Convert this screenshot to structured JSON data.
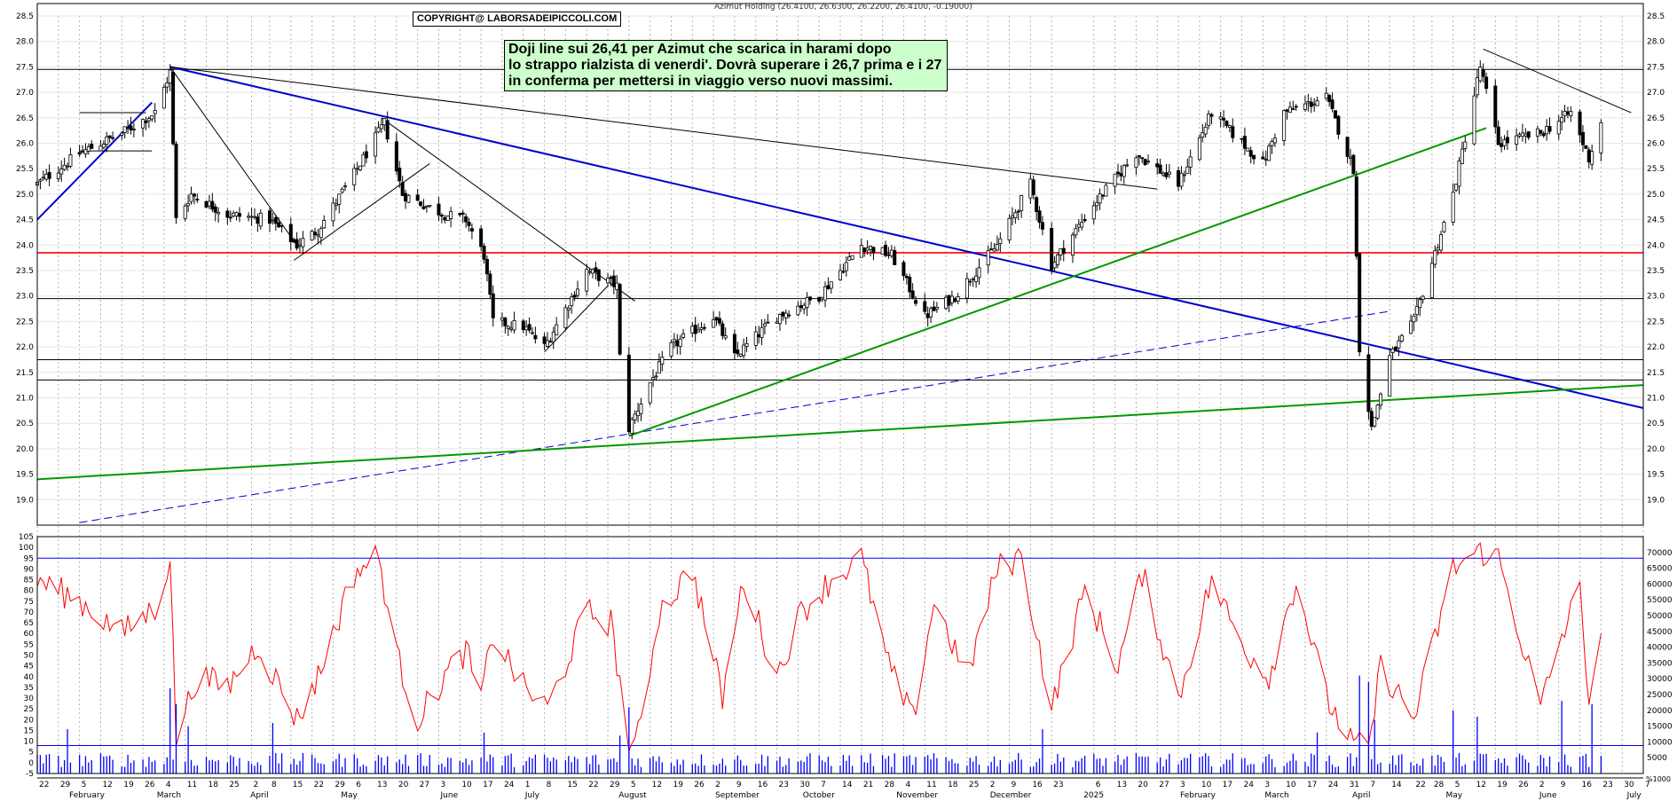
{
  "header": {
    "copyright": "COPYRIGHT@ LABORSADEIPICCOLI.COM",
    "title": "Azimut Holding (26.4100, 26.6300, 26.2200, 26.4100, -0.19000)"
  },
  "annotation": {
    "line1": "Doji line sui 26,41 per Azimut che scarica in harami dopo",
    "line2": "lo strappo rialzista di venerdi'. Dovrà superare i 26,7 prima e i 27",
    "line3": "in conferma per mettersi in viaggio verso nuovi massimi."
  },
  "colors": {
    "candle": "#000000",
    "trend_blue": "#0000cc",
    "trend_green": "#009900",
    "support_red": "#ff0000",
    "oscillator": "#ff0000",
    "volume": "#0000ff",
    "grid": "#b0b0b0",
    "annotation_bg": "#ccffcc"
  },
  "chart_data": [
    {
      "type": "candlestick",
      "title": "Azimut Holding (26.4100, 26.6300, 26.2200, 26.4100, -0.19000)",
      "ylim": [
        18.5,
        28.5
      ],
      "y_ticks": [
        "28.5",
        "28.0",
        "27.5",
        "27.0",
        "26.5",
        "26.0",
        "25.5",
        "25.0",
        "24.5",
        "24.0",
        "23.5",
        "23.0",
        "22.5",
        "22.0",
        "21.5",
        "21.0",
        "20.5",
        "20.0",
        "19.5",
        "19.0"
      ],
      "last_close": 26.41,
      "horizontal_levels": [
        {
          "value": 27.45,
          "color": "black"
        },
        {
          "value": 23.85,
          "color": "red"
        },
        {
          "value": 22.95,
          "color": "black"
        },
        {
          "value": 21.75,
          "color": "black"
        },
        {
          "value": 21.35,
          "color": "black"
        }
      ],
      "anchors": [
        [
          "2024-01-22",
          25.2
        ],
        [
          "2024-02-05",
          25.8
        ],
        [
          "2024-02-19",
          26.2
        ],
        [
          "2024-03-01",
          26.6
        ],
        [
          "2024-03-06",
          27.4
        ],
        [
          "2024-03-08",
          24.5
        ],
        [
          "2024-03-13",
          25.0
        ],
        [
          "2024-03-25",
          24.6
        ],
        [
          "2024-04-08",
          24.5
        ],
        [
          "2024-04-17",
          24.0
        ],
        [
          "2024-04-24",
          24.3
        ],
        [
          "2024-05-06",
          25.4
        ],
        [
          "2024-05-16",
          26.4
        ],
        [
          "2024-05-22",
          25.0
        ],
        [
          "2024-06-05",
          24.6
        ],
        [
          "2024-06-12",
          24.5
        ],
        [
          "2024-06-18",
          23.8
        ],
        [
          "2024-06-21",
          22.5
        ],
        [
          "2024-07-01",
          22.4
        ],
        [
          "2024-07-08",
          22.0
        ],
        [
          "2024-07-22",
          23.5
        ],
        [
          "2024-08-01",
          23.2
        ],
        [
          "2024-08-02",
          21.8
        ],
        [
          "2024-08-05",
          20.4
        ],
        [
          "2024-08-12",
          21.3
        ],
        [
          "2024-08-19",
          22.0
        ],
        [
          "2024-09-02",
          22.6
        ],
        [
          "2024-09-09",
          21.8
        ],
        [
          "2024-09-23",
          22.6
        ],
        [
          "2024-10-07",
          23.0
        ],
        [
          "2024-10-21",
          24.0
        ],
        [
          "2024-10-31",
          23.8
        ],
        [
          "2024-11-11",
          22.6
        ],
        [
          "2024-11-21",
          23.0
        ],
        [
          "2024-12-05",
          24.0
        ],
        [
          "2024-12-16",
          25.2
        ],
        [
          "2024-12-23",
          23.6
        ],
        [
          "2025-01-06",
          24.8
        ],
        [
          "2025-01-20",
          25.8
        ],
        [
          "2025-02-03",
          25.2
        ],
        [
          "2025-02-14",
          26.6
        ],
        [
          "2025-03-03",
          25.6
        ],
        [
          "2025-03-10",
          26.6
        ],
        [
          "2025-03-24",
          26.9
        ],
        [
          "2025-04-02",
          25.5
        ],
        [
          "2025-04-04",
          22.0
        ],
        [
          "2025-04-08",
          20.4
        ],
        [
          "2025-04-14",
          21.8
        ],
        [
          "2025-04-22",
          22.5
        ],
        [
          "2025-05-05",
          25.0
        ],
        [
          "2025-05-14",
          27.5
        ],
        [
          "2025-05-20",
          26.0
        ],
        [
          "2025-06-03",
          26.2
        ],
        [
          "2025-06-13",
          26.6
        ],
        [
          "2025-06-19",
          25.7
        ],
        [
          "2025-06-23",
          26.41
        ]
      ],
      "trendlines": [
        {
          "color": "blue",
          "start": [
            "2024-01-22",
            24.5
          ],
          "end": [
            "2024-02-29",
            26.8
          ]
        },
        {
          "color": "blue",
          "start": [
            "2024-03-06",
            27.5
          ],
          "end": [
            "2025-07-07",
            20.8
          ]
        },
        {
          "color": "blue",
          "style": "dashed",
          "start": [
            "2024-02-05",
            18.55
          ],
          "end": [
            "2025-04-14",
            22.7
          ]
        },
        {
          "color": "green",
          "start": [
            "2024-01-22",
            19.4
          ],
          "end": [
            "2025-07-07",
            21.25
          ]
        },
        {
          "color": "green",
          "start": [
            "2024-08-05",
            20.25
          ],
          "end": [
            "2025-05-16",
            26.3
          ]
        },
        {
          "color": "black",
          "start": [
            "2024-03-06",
            27.5
          ],
          "end": [
            "2025-01-27",
            25.1
          ]
        },
        {
          "color": "black",
          "start": [
            "2024-03-06",
            27.5
          ],
          "end": [
            "2024-04-17",
            24.0
          ]
        },
        {
          "color": "black",
          "start": [
            "2024-05-15",
            26.5
          ],
          "end": [
            "2024-08-07",
            22.9
          ]
        },
        {
          "color": "black",
          "start": [
            "2024-04-16",
            23.7
          ],
          "end": [
            "2024-05-31",
            25.6
          ]
        },
        {
          "color": "black",
          "start": [
            "2024-07-08",
            21.9
          ],
          "end": [
            "2024-07-29",
            23.2
          ]
        },
        {
          "color": "black",
          "start": [
            "2024-02-05",
            26.6
          ],
          "end": [
            "2024-02-27",
            26.6
          ]
        },
        {
          "color": "black",
          "start": [
            "2024-02-05",
            25.85
          ],
          "end": [
            "2024-02-29",
            25.85
          ]
        },
        {
          "color": "black",
          "start": [
            "2025-05-15",
            27.85
          ],
          "end": [
            "2025-07-03",
            26.6
          ]
        }
      ]
    },
    {
      "type": "line",
      "name": "oscillator",
      "ylim": [
        -5,
        105
      ],
      "y_ticks": [
        "105",
        "100",
        "95",
        "90",
        "85",
        "80",
        "75",
        "70",
        "65",
        "60",
        "55",
        "50",
        "45",
        "40",
        "35",
        "30",
        "25",
        "20",
        "15",
        "10",
        "5",
        "0",
        "-5"
      ],
      "levels": [
        95,
        8
      ],
      "x": [
        "2024-01-22",
        "2024-02-05",
        "2024-02-19",
        "2024-03-01",
        "2024-03-06",
        "2024-03-08",
        "2024-03-15",
        "2024-03-25",
        "2024-04-04",
        "2024-04-17",
        "2024-04-24",
        "2024-05-06",
        "2024-05-14",
        "2024-05-20",
        "2024-05-27",
        "2024-06-05",
        "2024-06-12",
        "2024-06-17",
        "2024-06-21",
        "2024-07-01",
        "2024-07-09",
        "2024-07-22",
        "2024-07-30",
        "2024-08-05",
        "2024-08-07",
        "2024-08-15",
        "2024-08-26",
        "2024-09-05",
        "2024-09-12",
        "2024-09-23",
        "2024-10-01",
        "2024-10-11",
        "2024-10-21",
        "2024-10-30",
        "2024-11-07",
        "2024-11-14",
        "2024-11-25",
        "2024-12-05",
        "2024-12-13",
        "2024-12-23",
        "2025-01-03",
        "2025-01-14",
        "2025-01-22",
        "2025-02-03",
        "2025-02-14",
        "2025-02-24",
        "2025-03-05",
        "2025-03-14",
        "2025-03-24",
        "2025-04-01",
        "2025-04-07",
        "2025-04-11",
        "2025-04-22",
        "2025-05-05",
        "2025-05-12",
        "2025-05-16",
        "2025-05-20",
        "2025-06-03",
        "2025-06-09",
        "2025-06-16",
        "2025-06-19",
        "2025-06-23"
      ],
      "values": [
        85,
        75,
        60,
        72,
        95,
        12,
        40,
        35,
        55,
        20,
        40,
        88,
        96,
        50,
        20,
        40,
        52,
        30,
        60,
        35,
        25,
        70,
        65,
        10,
        5,
        70,
        90,
        30,
        85,
        40,
        70,
        85,
        95,
        45,
        20,
        75,
        40,
        90,
        96,
        25,
        80,
        45,
        88,
        30,
        85,
        55,
        40,
        85,
        30,
        10,
        5,
        45,
        20,
        90,
        97,
        98,
        95,
        25,
        55,
        80,
        30,
        60
      ]
    },
    {
      "type": "bar",
      "name": "volume",
      "ylim": [
        0,
        75000
      ],
      "y_ticks": [
        "70000",
        "65000",
        "60000",
        "55000",
        "50000",
        "45000",
        "40000",
        "35000",
        "30000",
        "25000",
        "20000",
        "15000",
        "10000",
        "5000"
      ],
      "spikes": [
        {
          "x": "2024-02-01",
          "value": 14000
        },
        {
          "x": "2024-03-06",
          "value": 27000
        },
        {
          "x": "2024-03-08",
          "value": 22000
        },
        {
          "x": "2024-03-12",
          "value": 15000
        },
        {
          "x": "2024-04-09",
          "value": 16000
        },
        {
          "x": "2024-06-18",
          "value": 13000
        },
        {
          "x": "2024-08-02",
          "value": 12000
        },
        {
          "x": "2024-08-05",
          "value": 21000
        },
        {
          "x": "2024-12-20",
          "value": 14000
        },
        {
          "x": "2025-03-21",
          "value": 13000
        },
        {
          "x": "2025-04-04",
          "value": 31000
        },
        {
          "x": "2025-04-07",
          "value": 29000
        },
        {
          "x": "2025-04-09",
          "value": 17000
        },
        {
          "x": "2025-05-05",
          "value": 20000
        },
        {
          "x": "2025-05-13",
          "value": 18000
        },
        {
          "x": "2025-06-10",
          "value": 23000
        },
        {
          "x": "2025-06-20",
          "value": 22000
        }
      ],
      "typical_value": 5000
    }
  ],
  "x_axis": {
    "day_labels": [
      {
        "d": "2024-01-22",
        "t": "22"
      },
      {
        "d": "2024-01-29",
        "t": "29"
      },
      {
        "d": "2024-02-05",
        "t": "5"
      },
      {
        "d": "2024-02-12",
        "t": "12"
      },
      {
        "d": "2024-02-19",
        "t": "19"
      },
      {
        "d": "2024-02-26",
        "t": "26"
      },
      {
        "d": "2024-03-04",
        "t": "4"
      },
      {
        "d": "2024-03-11",
        "t": "11"
      },
      {
        "d": "2024-03-18",
        "t": "18"
      },
      {
        "d": "2024-03-25",
        "t": "25"
      },
      {
        "d": "2024-04-02",
        "t": "2"
      },
      {
        "d": "2024-04-08",
        "t": "8"
      },
      {
        "d": "2024-04-15",
        "t": "15"
      },
      {
        "d": "2024-04-22",
        "t": "22"
      },
      {
        "d": "2024-04-29",
        "t": "29"
      },
      {
        "d": "2024-05-06",
        "t": "6"
      },
      {
        "d": "2024-05-13",
        "t": "13"
      },
      {
        "d": "2024-05-20",
        "t": "20"
      },
      {
        "d": "2024-05-27",
        "t": "27"
      },
      {
        "d": "2024-06-03",
        "t": "3"
      },
      {
        "d": "2024-06-10",
        "t": "10"
      },
      {
        "d": "2024-06-17",
        "t": "17"
      },
      {
        "d": "2024-06-24",
        "t": "24"
      },
      {
        "d": "2024-07-01",
        "t": "1"
      },
      {
        "d": "2024-07-08",
        "t": "8"
      },
      {
        "d": "2024-07-15",
        "t": "15"
      },
      {
        "d": "2024-07-22",
        "t": "22"
      },
      {
        "d": "2024-07-29",
        "t": "29"
      },
      {
        "d": "2024-08-05",
        "t": "5"
      },
      {
        "d": "2024-08-12",
        "t": "12"
      },
      {
        "d": "2024-08-19",
        "t": "19"
      },
      {
        "d": "2024-08-26",
        "t": "26"
      },
      {
        "d": "2024-09-02",
        "t": "2"
      },
      {
        "d": "2024-09-09",
        "t": "9"
      },
      {
        "d": "2024-09-16",
        "t": "16"
      },
      {
        "d": "2024-09-23",
        "t": "23"
      },
      {
        "d": "2024-09-30",
        "t": "30"
      },
      {
        "d": "2024-10-07",
        "t": "7"
      },
      {
        "d": "2024-10-14",
        "t": "14"
      },
      {
        "d": "2024-10-21",
        "t": "21"
      },
      {
        "d": "2024-10-28",
        "t": "28"
      },
      {
        "d": "2024-11-04",
        "t": "4"
      },
      {
        "d": "2024-11-11",
        "t": "11"
      },
      {
        "d": "2024-11-18",
        "t": "18"
      },
      {
        "d": "2024-11-25",
        "t": "25"
      },
      {
        "d": "2024-12-02",
        "t": "2"
      },
      {
        "d": "2024-12-09",
        "t": "9"
      },
      {
        "d": "2024-12-16",
        "t": "16"
      },
      {
        "d": "2024-12-23",
        "t": "23"
      },
      {
        "d": "2025-01-06",
        "t": "6"
      },
      {
        "d": "2025-01-13",
        "t": "13"
      },
      {
        "d": "2025-01-20",
        "t": "20"
      },
      {
        "d": "2025-01-27",
        "t": "27"
      },
      {
        "d": "2025-02-03",
        "t": "3"
      },
      {
        "d": "2025-02-10",
        "t": "10"
      },
      {
        "d": "2025-02-17",
        "t": "17"
      },
      {
        "d": "2025-02-24",
        "t": "24"
      },
      {
        "d": "2025-03-03",
        "t": "3"
      },
      {
        "d": "2025-03-10",
        "t": "10"
      },
      {
        "d": "2025-03-17",
        "t": "17"
      },
      {
        "d": "2025-03-24",
        "t": "24"
      },
      {
        "d": "2025-03-31",
        "t": "31"
      },
      {
        "d": "2025-04-07",
        "t": "7"
      },
      {
        "d": "2025-04-14",
        "t": "14"
      },
      {
        "d": "2025-04-22",
        "t": "22"
      },
      {
        "d": "2025-04-28",
        "t": "28"
      },
      {
        "d": "2025-05-05",
        "t": "5"
      },
      {
        "d": "2025-05-12",
        "t": "12"
      },
      {
        "d": "2025-05-19",
        "t": "19"
      },
      {
        "d": "2025-05-26",
        "t": "26"
      },
      {
        "d": "2025-06-02",
        "t": "2"
      },
      {
        "d": "2025-06-09",
        "t": "9"
      },
      {
        "d": "2025-06-16",
        "t": "16"
      },
      {
        "d": "2025-06-23",
        "t": "23"
      },
      {
        "d": "2025-06-30",
        "t": "30"
      },
      {
        "d": "2025-07-07",
        "t": "7"
      }
    ],
    "month_labels": [
      {
        "d": "2024-02-01",
        "t": "February"
      },
      {
        "d": "2024-03-01",
        "t": "March"
      },
      {
        "d": "2024-04-01",
        "t": "April"
      },
      {
        "d": "2024-05-01",
        "t": "May"
      },
      {
        "d": "2024-06-03",
        "t": "June"
      },
      {
        "d": "2024-07-01",
        "t": "July"
      },
      {
        "d": "2024-08-01",
        "t": "August"
      },
      {
        "d": "2024-09-02",
        "t": "September"
      },
      {
        "d": "2024-10-01",
        "t": "October"
      },
      {
        "d": "2024-11-01",
        "t": "November"
      },
      {
        "d": "2024-12-02",
        "t": "December"
      },
      {
        "d": "2025-01-02",
        "t": "2025"
      },
      {
        "d": "2025-02-03",
        "t": "February"
      },
      {
        "d": "2025-03-03",
        "t": "March"
      },
      {
        "d": "2025-04-01",
        "t": "April"
      },
      {
        "d": "2025-05-02",
        "t": "May"
      },
      {
        "d": "2025-06-02",
        "t": "June"
      },
      {
        "d": "2025-07-01",
        "t": "July"
      }
    ],
    "corner_label": "%1000"
  }
}
